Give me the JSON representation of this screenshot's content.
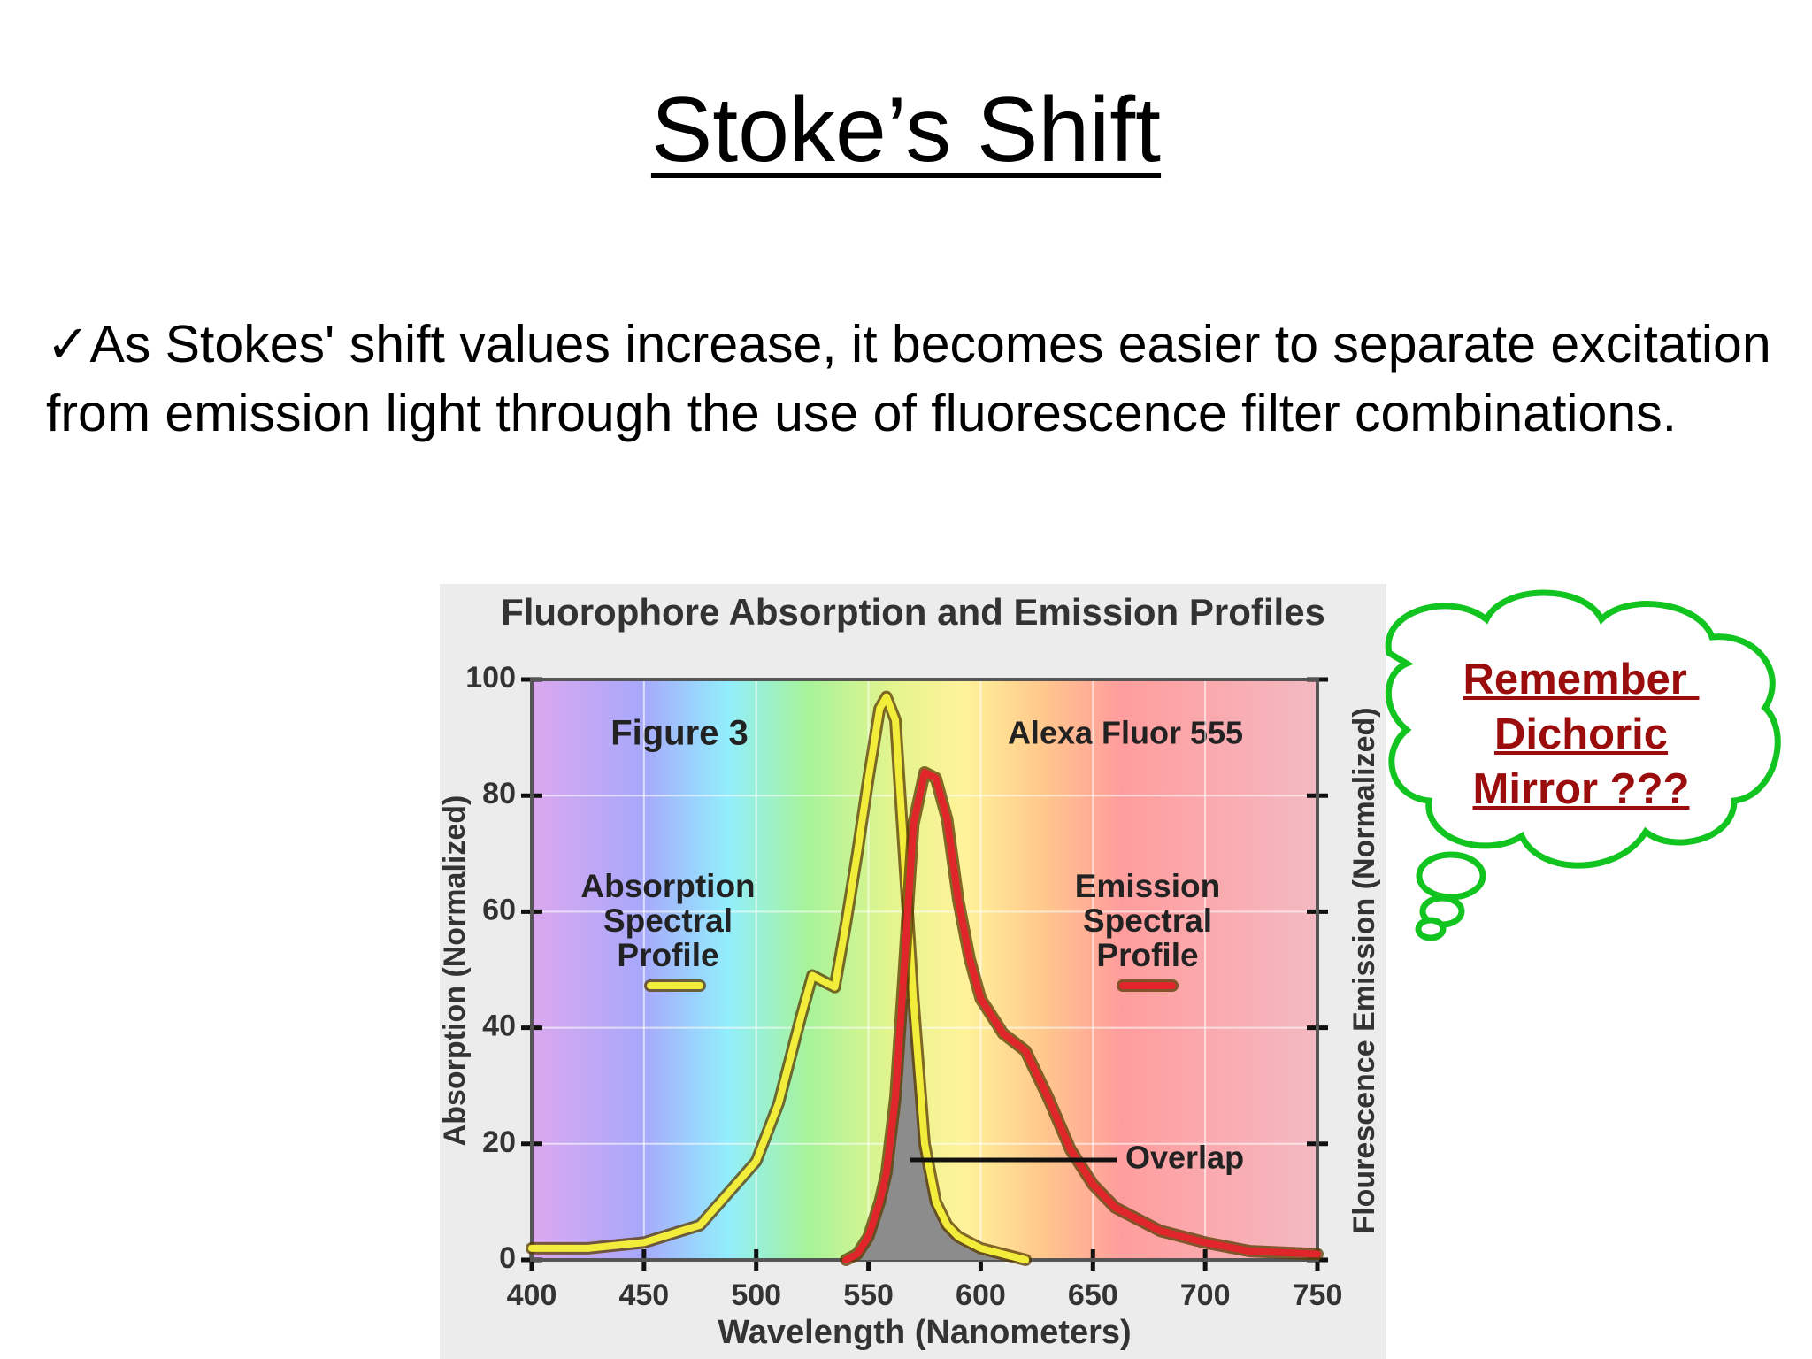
{
  "slide": {
    "title": "Stoke’s Shift",
    "bullet_marker": "✓",
    "bullet": "As Stokes' shift values increase, it becomes easier to separate excitation from emission light through the use of fluorescence filter combinations.",
    "bubble": [
      "Remember ",
      "Dichoric",
      "Mirror ???"
    ]
  },
  "chart_data": {
    "type": "line",
    "title": "Fluorophore Absorption and Emission Profiles",
    "x_label": "Wavelength (Nanometers)",
    "y_label": "Absorption (Normalized)",
    "y2_label": "Flourescence Emission (Normalized)",
    "annotations": [
      "Figure 3",
      "Alexa Fluor 555",
      "Overlap"
    ],
    "x": [
      400,
      425,
      450,
      475,
      500,
      510,
      520,
      525,
      530,
      535,
      540,
      545,
      550,
      555,
      558,
      562,
      565,
      570,
      575,
      580,
      585,
      590,
      595,
      600,
      610,
      620,
      630,
      640,
      650,
      660,
      680,
      700,
      720,
      750
    ],
    "series": [
      {
        "name": "Absorption Spectral Profile",
        "color": "#f2ec3a",
        "values": [
          2,
          2,
          3,
          6,
          17,
          27,
          42,
          49,
          48,
          47,
          58,
          70,
          83,
          95,
          97,
          93,
          75,
          45,
          20,
          10,
          6,
          4,
          3,
          2,
          1,
          0,
          null,
          null,
          null,
          null,
          null,
          null,
          null,
          null
        ]
      },
      {
        "name": "Emission Spectral Profile",
        "color": "#e0262a",
        "values": [
          null,
          null,
          null,
          null,
          null,
          null,
          null,
          null,
          null,
          null,
          0,
          1,
          4,
          10,
          15,
          28,
          45,
          75,
          84,
          83,
          76,
          62,
          52,
          45,
          39,
          36,
          28,
          19,
          13,
          9,
          5,
          3,
          1.5,
          1
        ]
      }
    ],
    "overlap_color": "#8c8c8c",
    "xlim": [
      400,
      750
    ],
    "xticks": [
      400,
      450,
      500,
      550,
      600,
      650,
      700,
      750
    ],
    "ylim": [
      0,
      100
    ],
    "yticks": [
      0,
      20,
      40,
      60,
      80,
      100
    ],
    "grid": true
  }
}
